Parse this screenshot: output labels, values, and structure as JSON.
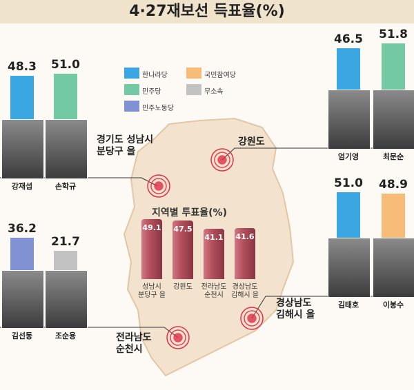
{
  "title": "4·27재보선 득표율(%)",
  "legend": [
    {
      "label": "한나라당",
      "color": "#3aa6e2"
    },
    {
      "label": "민주당",
      "color": "#72c9a4"
    },
    {
      "label": "민주노동당",
      "color": "#8192d4"
    },
    {
      "label": "국민참여당",
      "color": "#f7bd78"
    },
    {
      "label": "무소속",
      "color": "#c2c2c2"
    }
  ],
  "regions": [
    {
      "name": "경기도 성남시\n분당구 을",
      "candidates": [
        {
          "name": "강재섭",
          "value": 48.3,
          "value_label": "48.3",
          "color": "#3aa6e2"
        },
        {
          "name": "손학규",
          "value": 51,
          "value_label": "51.0",
          "color": "#72c9a4"
        }
      ]
    },
    {
      "name": "강원도",
      "candidates": [
        {
          "name": "엄기영",
          "value": 46.5,
          "value_label": "46.5",
          "color": "#3aa6e2"
        },
        {
          "name": "최문순",
          "value": 51.8,
          "value_label": "51.8",
          "color": "#72c9a4"
        }
      ]
    },
    {
      "name": "전라남도\n순천시",
      "candidates": [
        {
          "name": "김선동",
          "value": 36.2,
          "value_label": "36.2",
          "color": "#8192d4"
        },
        {
          "name": "조순용",
          "value": 21.7,
          "value_label": "21.7",
          "color": "#c2c2c2"
        }
      ]
    },
    {
      "name": "경상남도\n김해시 을",
      "candidates": [
        {
          "name": "김태호",
          "value": 51,
          "value_label": "51.0",
          "color": "#3aa6e2"
        },
        {
          "name": "이봉수",
          "value": 48.9,
          "value_label": "48.9",
          "color": "#f7bd78"
        }
      ]
    }
  ],
  "turnout": {
    "title": "지역별 투표율(%)",
    "color": "#b4515e",
    "categories": [
      "성남시\n분당구 을",
      "강원도",
      "전라남도\n순천시",
      "경상남도\n김해시 을"
    ],
    "values": [
      49.1,
      47.5,
      41.1,
      41.6
    ]
  }
}
